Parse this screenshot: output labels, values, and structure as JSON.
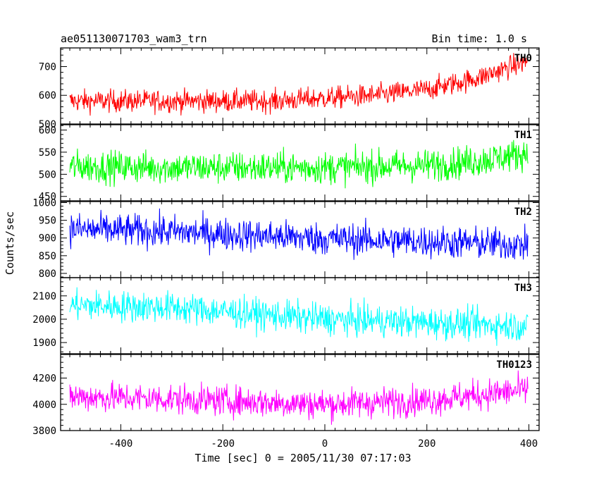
{
  "header": {
    "left_title": "ae051130071703_wam3_trn",
    "right_title": "Bin time: 1.0 s"
  },
  "chart_data": {
    "type": "line",
    "xlabel": "Time [sec] 0 = 2005/11/30 07:17:03",
    "ylabel": "Counts/sec",
    "xlim": [
      -518,
      420
    ],
    "x_ticks": [
      -400,
      -200,
      0,
      200,
      400
    ],
    "x_start": -500,
    "x_end": 398,
    "bin_time_s": 1.0,
    "panels": [
      {
        "name": "TH0",
        "color": "#ff0000",
        "ylim": [
          500,
          765
        ],
        "y_ticks": [
          500,
          600,
          700
        ],
        "trend": [
          [
            -500,
            580
          ],
          [
            -300,
            580
          ],
          [
            -100,
            580
          ],
          [
            0,
            590
          ],
          [
            100,
            600
          ],
          [
            200,
            620
          ],
          [
            300,
            660
          ],
          [
            398,
            720
          ]
        ],
        "noise": 32
      },
      {
        "name": "TH1",
        "color": "#00ff00",
        "ylim": [
          440,
          612
        ],
        "y_ticks": [
          450,
          500,
          550,
          600
        ],
        "trend": [
          [
            -500,
            518
          ],
          [
            -300,
            515
          ],
          [
            0,
            515
          ],
          [
            200,
            520
          ],
          [
            300,
            530
          ],
          [
            398,
            548
          ]
        ],
        "noise": 30
      },
      {
        "name": "TH2",
        "color": "#0000ff",
        "ylim": [
          788,
          1003
        ],
        "y_ticks": [
          800,
          850,
          900,
          950,
          1000
        ],
        "trend": [
          [
            -500,
            925
          ],
          [
            -300,
            918
          ],
          [
            0,
            898
          ],
          [
            200,
            890
          ],
          [
            398,
            880
          ]
        ],
        "noise": 38
      },
      {
        "name": "TH3",
        "color": "#00ffff",
        "ylim": [
          1852,
          2178
        ],
        "y_ticks": [
          1900,
          2000,
          2100
        ],
        "trend": [
          [
            -500,
            2060
          ],
          [
            -300,
            2050
          ],
          [
            0,
            2000
          ],
          [
            200,
            1985
          ],
          [
            398,
            1970
          ]
        ],
        "noise": 55
      },
      {
        "name": "TH0123",
        "color": "#ff00ff",
        "ylim": [
          3800,
          4380
        ],
        "y_ticks": [
          3800,
          4000,
          4200
        ],
        "trend": [
          [
            -500,
            4060
          ],
          [
            -300,
            4040
          ],
          [
            0,
            4000
          ],
          [
            200,
            4030
          ],
          [
            398,
            4110
          ]
        ],
        "noise": 95
      }
    ]
  }
}
